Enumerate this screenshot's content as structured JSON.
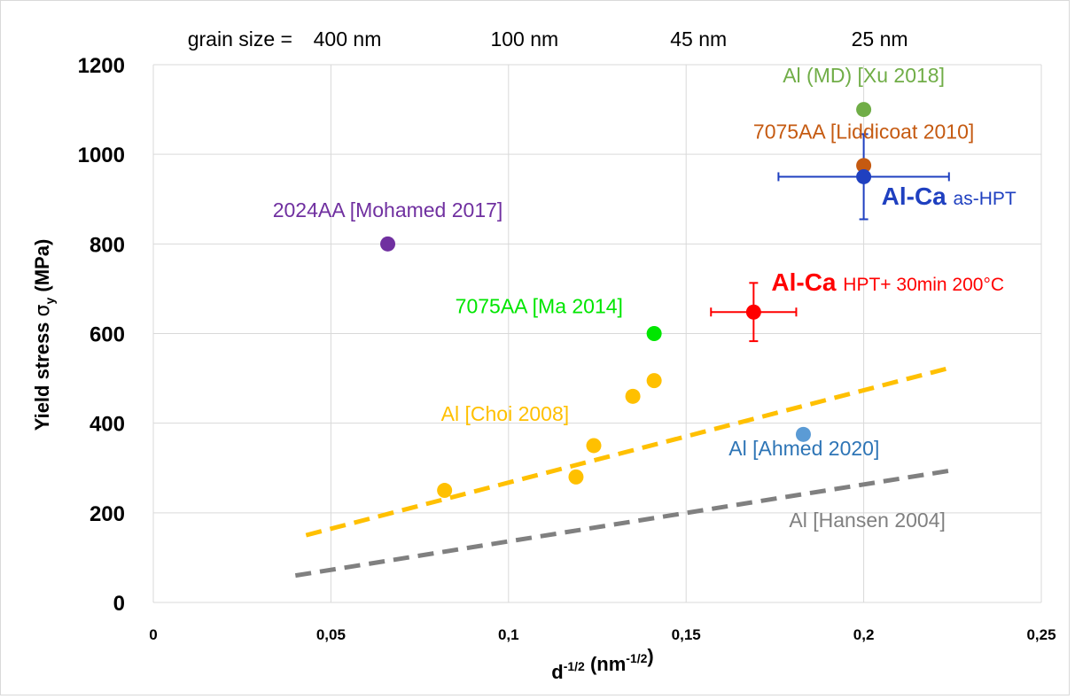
{
  "chart_data": {
    "type": "scatter",
    "title": "",
    "xlabel": "d^-1/2 (nm^-1/2)",
    "xlabel_parts": {
      "base": "d",
      "base_sup": "-1/2",
      "unit_open": " (nm",
      "unit_sup": "-1/2",
      "unit_close": ")"
    },
    "ylabel": "Yield stress σy (MPa)",
    "ylabel_parts": {
      "main": "Yield stress ",
      "sigma": "σ",
      "sub": "y",
      "unit": " (MPa)"
    },
    "xlim": [
      0,
      0.25
    ],
    "ylim": [
      0,
      1200
    ],
    "x_ticks": [
      {
        "value": 0,
        "label": "0"
      },
      {
        "value": 0.05,
        "label": "0,05"
      },
      {
        "value": 0.1,
        "label": "0,1"
      },
      {
        "value": 0.15,
        "label": "0,15"
      },
      {
        "value": 0.2,
        "label": "0,2"
      },
      {
        "value": 0.25,
        "label": "0,25"
      }
    ],
    "y_ticks": [
      {
        "value": 0,
        "label": "0"
      },
      {
        "value": 200,
        "label": "200"
      },
      {
        "value": 400,
        "label": "400"
      },
      {
        "value": 600,
        "label": "600"
      },
      {
        "value": 800,
        "label": "800"
      },
      {
        "value": 1000,
        "label": "1000"
      },
      {
        "value": 1200,
        "label": "1200"
      }
    ],
    "grid": true,
    "grain_size_axis": {
      "prefix": "grain size  =",
      "labels": [
        {
          "x": 0.05,
          "text": "400 nm"
        },
        {
          "x": 0.1,
          "text": "100 nm"
        },
        {
          "x": 0.149,
          "text": "45 nm"
        },
        {
          "x": 0.2,
          "text": "25 nm"
        }
      ]
    },
    "series": [
      {
        "name": "Al [Choi 2008]",
        "color": "#ffc000",
        "points": [
          {
            "x": 0.082,
            "y": 250
          },
          {
            "x": 0.119,
            "y": 280
          },
          {
            "x": 0.124,
            "y": 350
          },
          {
            "x": 0.135,
            "y": 460
          },
          {
            "x": 0.141,
            "y": 495
          }
        ]
      },
      {
        "name": "2024AA [Mohamed 2017]",
        "color": "#7030a0",
        "points": [
          {
            "x": 0.066,
            "y": 800
          }
        ]
      },
      {
        "name": "7075AA [Ma 2014]",
        "color": "#00e600",
        "points": [
          {
            "x": 0.141,
            "y": 600
          }
        ]
      },
      {
        "name": "Al [Ahmed 2020]",
        "color": "#5b9bd5",
        "points": [
          {
            "x": 0.183,
            "y": 375
          }
        ]
      },
      {
        "name": "Al (MD) [Xu 2018]",
        "color": "#70ad47",
        "points": [
          {
            "x": 0.2,
            "y": 1100
          }
        ]
      },
      {
        "name": "7075AA [Liddicoat 2010]",
        "color": "#c55a11",
        "points": [
          {
            "x": 0.2,
            "y": 975
          }
        ]
      },
      {
        "name": "Al-Ca as-HPT",
        "color": "#1f40c0",
        "points": [
          {
            "x": 0.2,
            "y": 950,
            "xerr": 0.024,
            "yerr": 95
          }
        ]
      },
      {
        "name": "Al-Ca HPT+ 30min 200°C",
        "color": "#ff0000",
        "points": [
          {
            "x": 0.169,
            "y": 648,
            "xerr": 0.012,
            "yerr": 65
          }
        ]
      }
    ],
    "trend_lines": [
      {
        "name": "Choi 2008 fit",
        "color": "#ffc000",
        "x": [
          0.043,
          0.225
        ],
        "y": [
          150,
          525
        ]
      },
      {
        "name": "Al [Hansen 2004]",
        "color": "#808080",
        "x": [
          0.04,
          0.225
        ],
        "y": [
          60,
          295
        ]
      }
    ],
    "annotations": [
      {
        "text": "Al (MD) [Xu 2018]",
        "color": "#70ad47",
        "x": 0.2,
        "y": 1160,
        "anchor": "middle"
      },
      {
        "text": "7075AA [Liddicoat 2010]",
        "color": "#c55a11",
        "x": 0.2,
        "y": 1035,
        "anchor": "middle"
      },
      {
        "text": "2024AA [Mohamed 2017]",
        "color": "#7030a0",
        "x": 0.066,
        "y": 860,
        "anchor": "middle"
      },
      {
        "text": "7075AA [Ma 2014]",
        "color": "#00e600",
        "x": 0.085,
        "y": 645,
        "anchor": "start"
      },
      {
        "text": "Al [Choi 2008]",
        "color": "#ffc000",
        "x": 0.081,
        "y": 405,
        "anchor": "start"
      },
      {
        "text": "Al [Ahmed 2020]",
        "color": "#2e75b6",
        "x": 0.162,
        "y": 328,
        "anchor": "start"
      },
      {
        "text": "Al [Hansen 2004]",
        "color": "#808080",
        "x": 0.179,
        "y": 168,
        "anchor": "start"
      }
    ],
    "rich_annotations": [
      {
        "bold": "Al-Ca",
        "normal": "as-HPT",
        "color": "#1f40c0",
        "x": 0.205,
        "y": 888,
        "anchor": "start"
      },
      {
        "bold": "Al-Ca",
        "normal": "HPT+ 30min 200°C",
        "color": "#ff0000",
        "x": 0.174,
        "y": 696,
        "anchor": "start"
      }
    ]
  }
}
